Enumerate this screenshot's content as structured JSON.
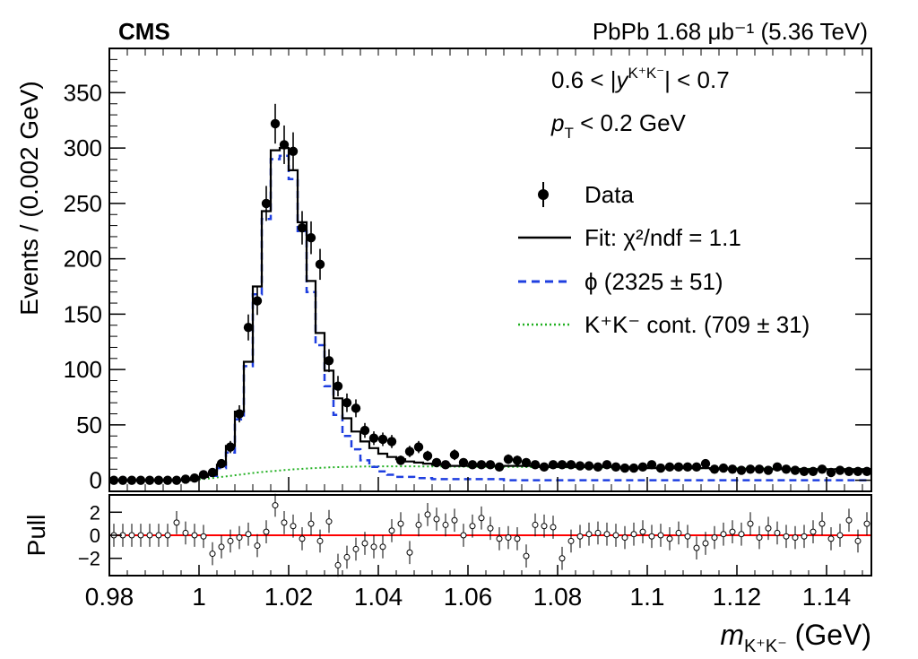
{
  "header": {
    "experiment": "CMS",
    "run": "PbPb 1.68 μb⁻¹ (5.36 TeV)"
  },
  "cuts": {
    "rapidity": "0.6 < |y^{K⁺K⁻}| < 0.7",
    "pt": "p_T < 0.2 GeV"
  },
  "legend": {
    "placement": "right",
    "data": "Data",
    "fit": "Fit: χ²/ndf = 1.1",
    "phi": "ϕ (2325 ± 51)",
    "cont": "K⁺K⁻ cont. (709 ± 31)"
  },
  "colors": {
    "data": "#000000",
    "fit": "#000000",
    "phi": "#1f3fe0",
    "cont": "#22b022",
    "pull_zero": "#ff0000"
  },
  "chart_data": {
    "type": "scatter",
    "xlabel": "m_{K⁺K⁻} (GeV)",
    "ylabel": "Events / (0.002 GeV)",
    "pull_ylabel": "Pull",
    "xlim": [
      0.98,
      1.15
    ],
    "ylim": [
      -10,
      390
    ],
    "pull_ylim": [
      -3.5,
      3.5
    ],
    "x_ticks": [
      "0.98",
      "1",
      "1.02",
      "1.04",
      "1.06",
      "1.08",
      "1.1",
      "1.12",
      "1.14"
    ],
    "y_ticks": [
      "0",
      "50",
      "100",
      "150",
      "200",
      "250",
      "300",
      "350"
    ],
    "pull_ticks": [
      "2",
      "0",
      "−2"
    ],
    "bin_width": 0.002,
    "bin_centers": [
      0.981,
      0.983,
      0.985,
      0.987,
      0.989,
      0.991,
      0.993,
      0.995,
      0.997,
      0.999,
      1.001,
      1.003,
      1.005,
      1.007,
      1.009,
      1.011,
      1.013,
      1.015,
      1.017,
      1.019,
      1.021,
      1.023,
      1.025,
      1.027,
      1.029,
      1.031,
      1.033,
      1.035,
      1.037,
      1.039,
      1.041,
      1.043,
      1.045,
      1.047,
      1.049,
      1.051,
      1.053,
      1.055,
      1.057,
      1.059,
      1.061,
      1.063,
      1.065,
      1.067,
      1.069,
      1.071,
      1.073,
      1.075,
      1.077,
      1.079,
      1.081,
      1.083,
      1.085,
      1.087,
      1.089,
      1.091,
      1.093,
      1.095,
      1.097,
      1.099,
      1.101,
      1.103,
      1.105,
      1.107,
      1.109,
      1.111,
      1.113,
      1.115,
      1.117,
      1.119,
      1.121,
      1.123,
      1.125,
      1.127,
      1.129,
      1.131,
      1.133,
      1.135,
      1.137,
      1.139,
      1.141,
      1.143,
      1.145,
      1.147,
      1.149
    ],
    "series": [
      {
        "name": "Data",
        "values": [
          0,
          0,
          0,
          0,
          0,
          0,
          0,
          0,
          1,
          2,
          5,
          7,
          15,
          30,
          60,
          138,
          162,
          250,
          322,
          303,
          297,
          228,
          219,
          195,
          108,
          85,
          70,
          65,
          45,
          38,
          37,
          35,
          18,
          26,
          30,
          22,
          16,
          14,
          23,
          16,
          14,
          14,
          14,
          12,
          19,
          18,
          16,
          14,
          12,
          14,
          14,
          14,
          13,
          13,
          12,
          14,
          12,
          11,
          11,
          12,
          14,
          11,
          12,
          12,
          12,
          12,
          15,
          10,
          11,
          10,
          9,
          10,
          10,
          9,
          12,
          10,
          9,
          8,
          8,
          10,
          7,
          9,
          8,
          8,
          8
        ]
      },
      {
        "name": "Fit: χ²/ndf = 1.1",
        "values": [
          0,
          0,
          0,
          0,
          0,
          0,
          0,
          0,
          0,
          1,
          3,
          5,
          14,
          31,
          62,
          107,
          175,
          243,
          298,
          300,
          280,
          233,
          180,
          133,
          99,
          74,
          56,
          44,
          35,
          29,
          24,
          21,
          19,
          17,
          16,
          15,
          14,
          14,
          13,
          13,
          13,
          13,
          13,
          13,
          13,
          13,
          13,
          13,
          12,
          12,
          12,
          12,
          12,
          12,
          12,
          12,
          12,
          12,
          11,
          11,
          11,
          11,
          11,
          11,
          11,
          11,
          11,
          10,
          10,
          10,
          10,
          10,
          10,
          10,
          10,
          10,
          10,
          10,
          10,
          10,
          10,
          10,
          10,
          10,
          10
        ]
      },
      {
        "name": "ϕ (2325 ± 51)",
        "values": [
          0,
          0,
          0,
          0,
          0,
          0,
          0,
          0,
          0,
          1,
          3,
          4,
          11,
          25,
          55,
          103,
          168,
          236,
          290,
          293,
          272,
          225,
          170,
          122,
          85,
          59,
          40,
          28,
          18,
          12,
          8,
          5,
          3,
          3,
          2,
          2,
          1,
          1,
          1,
          1,
          1,
          1,
          1,
          1,
          0,
          0,
          0,
          0,
          0,
          0,
          0,
          0,
          0,
          0,
          0,
          0,
          0,
          0,
          0,
          0,
          0,
          0,
          0,
          0,
          0,
          0,
          0,
          0,
          0,
          0,
          0,
          0,
          0,
          0,
          0,
          0,
          0,
          0,
          0,
          0,
          0,
          0,
          0,
          0,
          0
        ]
      },
      {
        "name": "K⁺K⁻ cont. (709 ± 31)",
        "values": [
          0,
          0,
          0,
          0,
          0,
          0,
          0,
          0,
          0.2,
          0.6,
          1.2,
          2,
          3,
          4,
          5,
          6,
          7,
          7.8,
          8.5,
          9.2,
          9.8,
          10.3,
          10.8,
          11.2,
          11.6,
          11.9,
          12.1,
          12.3,
          12.4,
          12.5,
          12.6,
          12.6,
          12.6,
          12.6,
          12.5,
          12.5,
          12.4,
          12.4,
          12.3,
          12.3,
          12.2,
          12.2,
          12.1,
          12.1,
          12,
          12,
          11.9,
          11.9,
          11.8,
          11.8,
          11.7,
          11.7,
          11.6,
          11.6,
          11.5,
          11.5,
          11.4,
          11.3,
          11.3,
          11.2,
          11.2,
          11.1,
          11.1,
          11,
          11,
          10.9,
          10.9,
          10.8,
          10.8,
          10.7,
          10.7,
          10.6,
          10.6,
          10.5,
          10.5,
          10.4,
          10.4,
          10.3,
          10.3,
          10.2,
          10.2,
          10.1,
          10.1,
          10,
          10
        ]
      },
      {
        "name": "Pull",
        "values": [
          0,
          0,
          0,
          0,
          0,
          0,
          0,
          1.1,
          0.2,
          0,
          -0.1,
          -1.6,
          -1,
          -0.5,
          -0.2,
          0.1,
          -0.9,
          0.3,
          2.6,
          1.1,
          0.8,
          -0.3,
          1,
          -0.5,
          1.2,
          -2.6,
          -1.9,
          -1.2,
          -0.7,
          -1,
          -1,
          0.4,
          1,
          -1.5,
          0.9,
          1.8,
          1.4,
          0.9,
          1.3,
          0,
          0.8,
          1.5,
          0.6,
          -0.3,
          -0.2,
          -0.3,
          -1.8,
          0.9,
          0.8,
          0.7,
          -2,
          -0.5,
          -0.1,
          0.1,
          0.2,
          0.1,
          0,
          -0.2,
          0.1,
          0.3,
          -0.1,
          0,
          -0.3,
          0.2,
          -0.1,
          -1.1,
          -0.7,
          -0.2,
          0.1,
          0.3,
          0.1,
          1,
          -0.2,
          0.6,
          0.2,
          -0.1,
          -0.2,
          -0.1,
          0.3,
          1,
          -0.3,
          0,
          1.3,
          -0.5,
          1
        ]
      }
    ]
  }
}
